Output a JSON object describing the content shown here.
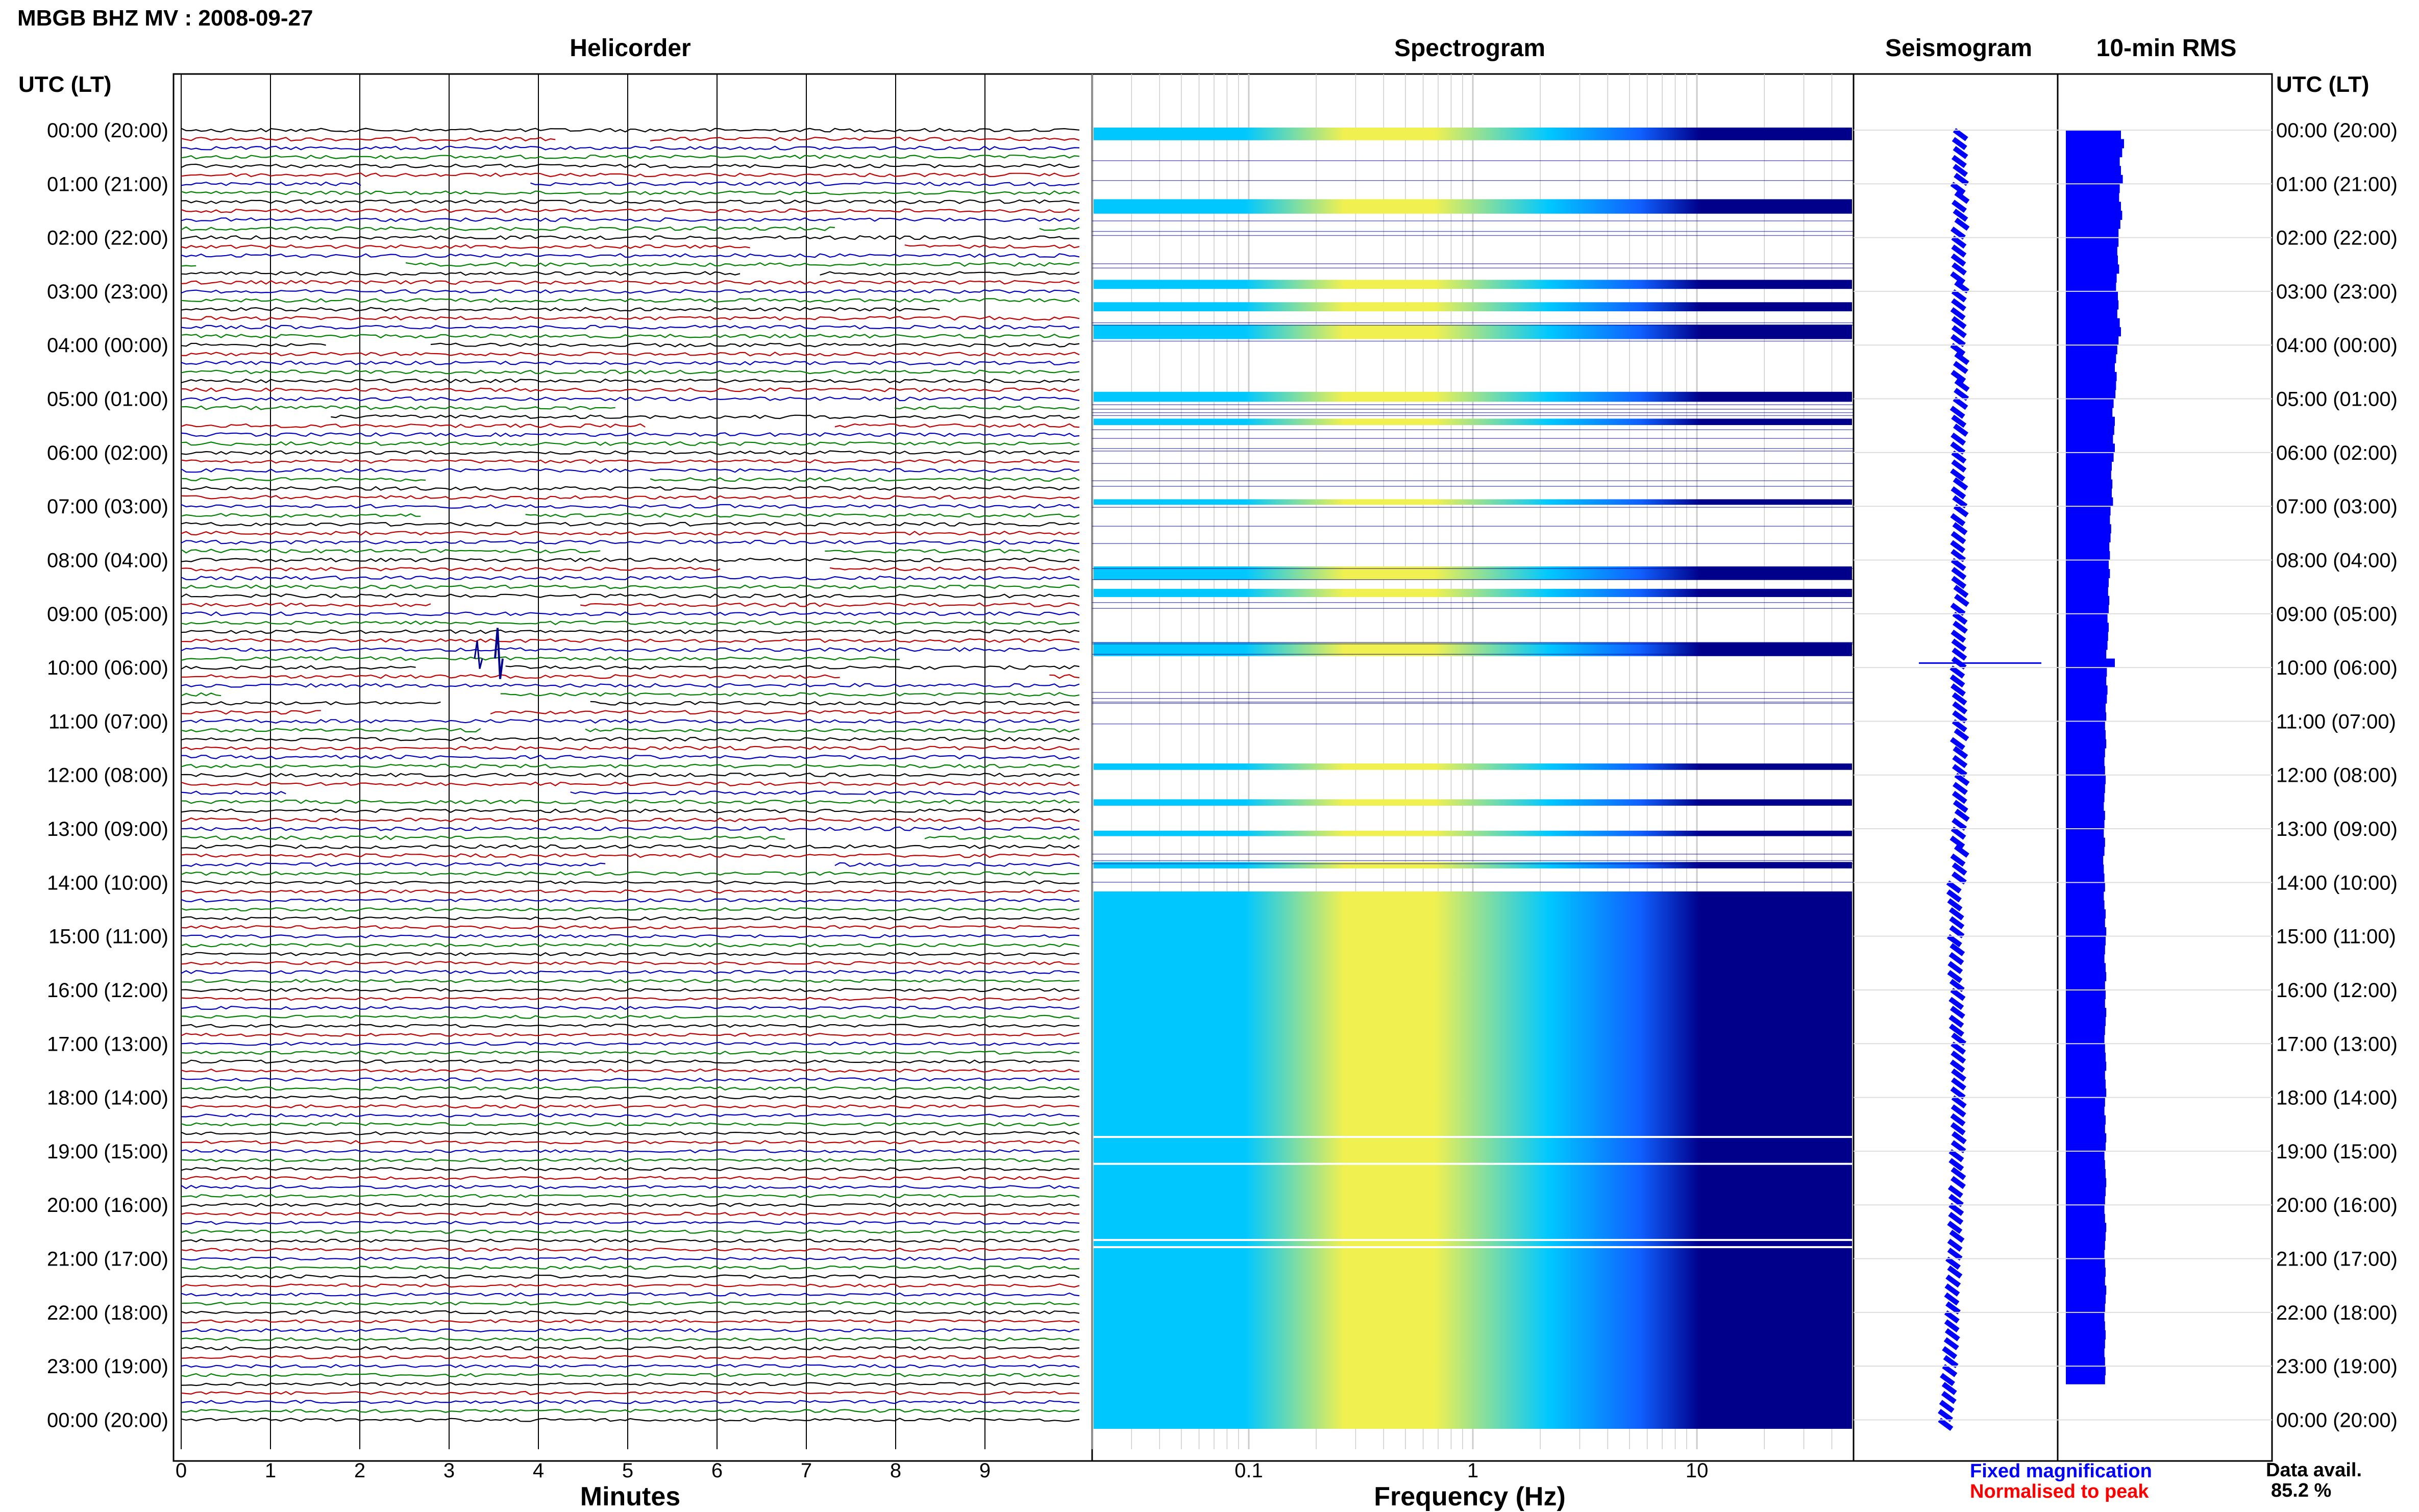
{
  "page": {
    "title": "MBGB BHZ MV : 2008-09-27",
    "utc_lt_left": "UTC (LT)",
    "utc_lt_right": "UTC (LT)"
  },
  "panels": {
    "helicorder": "Helicorder",
    "spectrogram": "Spectrogram",
    "seismogram": "Seismogram",
    "rms": "10-min RMS"
  },
  "axes": {
    "minutes_label": "Minutes",
    "frequency_label": "Frequency (Hz)",
    "minute_ticks": [
      "0",
      "1",
      "2",
      "3",
      "4",
      "5",
      "6",
      "7",
      "8",
      "9"
    ],
    "frequency_ticks": [
      "0.1",
      "1",
      "10"
    ]
  },
  "time_labels": [
    "00:00 (20:00)",
    "01:00 (21:00)",
    "02:00 (22:00)",
    "03:00 (23:00)",
    "04:00 (00:00)",
    "05:00 (01:00)",
    "06:00 (02:00)",
    "07:00 (03:00)",
    "08:00 (04:00)",
    "09:00 (05:00)",
    "10:00 (06:00)",
    "11:00 (07:00)",
    "12:00 (08:00)",
    "13:00 (09:00)",
    "14:00 (10:00)",
    "15:00 (11:00)",
    "16:00 (12:00)",
    "17:00 (13:00)",
    "18:00 (14:00)",
    "19:00 (15:00)",
    "20:00 (16:00)",
    "21:00 (17:00)",
    "22:00 (18:00)",
    "23:00 (19:00)",
    "00:00 (20:00)"
  ],
  "legend": {
    "fixed": "Fixed magnification",
    "normalised": "Normalised to peak",
    "data_avail_label": "Data avail.",
    "data_avail_value": "85.2 %"
  },
  "colors": {
    "trace_cycle": [
      "#000000",
      "#c00000",
      "#0000c0",
      "#008000"
    ],
    "fixed": "#0000ff",
    "normalised": "#ff0000",
    "rms_bar": "#0000ff",
    "spec_low": "#00008b",
    "spec_mid": "#00c8ff",
    "spec_high": "#f0f050"
  },
  "chart_data": {
    "type": "heatmap",
    "title": "MBGB BHZ MV : 2008-09-27",
    "time_range_utc": [
      "00:00",
      "00:00"
    ],
    "helicorder": {
      "x_unit": "Minutes",
      "xlim": [
        0,
        10
      ],
      "rows_per_hour": 6,
      "event_near": "09:50 UTC"
    },
    "spectrogram": {
      "xscale": "log",
      "xlim": [
        0.02,
        50
      ],
      "x_unit": "Hz",
      "peak_band_hz": [
        0.2,
        0.5
      ],
      "continuous_from_utc": "14:10"
    },
    "rms_10min_relative": [
      0.9,
      0.95,
      0.92,
      0.88,
      0.9,
      0.93,
      0.88,
      0.87,
      0.9,
      0.92,
      0.89,
      0.86,
      0.86,
      0.84,
      0.85,
      0.87,
      0.83,
      0.82,
      0.85,
      0.86,
      0.84,
      0.88,
      0.9,
      0.86,
      0.84,
      0.82,
      0.8,
      0.83,
      0.82,
      0.81,
      0.78,
      0.76,
      0.8,
      0.79,
      0.77,
      0.8,
      0.78,
      0.75,
      0.74,
      0.76,
      0.75,
      0.77,
      0.73,
      0.72,
      0.74,
      0.73,
      0.71,
      0.72,
      0.7,
      0.72,
      0.7,
      0.69,
      0.71,
      0.7,
      0.68,
      0.7,
      0.69,
      0.68,
      0.66,
      0.8,
      0.67,
      0.66,
      0.68,
      0.67,
      0.65,
      0.66,
      0.64,
      0.65,
      0.66,
      0.64,
      0.63,
      0.64,
      0.65,
      0.64,
      0.63,
      0.62,
      0.64,
      0.63,
      0.62,
      0.64,
      0.63,
      0.61,
      0.62,
      0.63,
      0.64,
      0.62,
      0.63,
      0.65,
      0.64,
      0.66,
      0.65,
      0.64,
      0.63,
      0.65,
      0.66,
      0.64,
      0.65,
      0.64,
      0.66,
      0.65,
      0.64,
      0.63,
      0.64,
      0.65,
      0.66,
      0.64,
      0.65,
      0.66,
      0.64,
      0.63,
      0.65,
      0.64,
      0.66,
      0.65,
      0.63,
      0.64,
      0.65,
      0.66,
      0.65,
      0.64,
      0.63,
      0.64,
      0.66,
      0.65,
      0.64,
      0.63,
      0.64,
      0.65,
      0.64,
      0.66,
      0.65,
      0.64,
      0.63,
      0.64,
      0.65,
      0.64,
      0.63,
      0.64,
      0.65,
      0.64
    ]
  }
}
